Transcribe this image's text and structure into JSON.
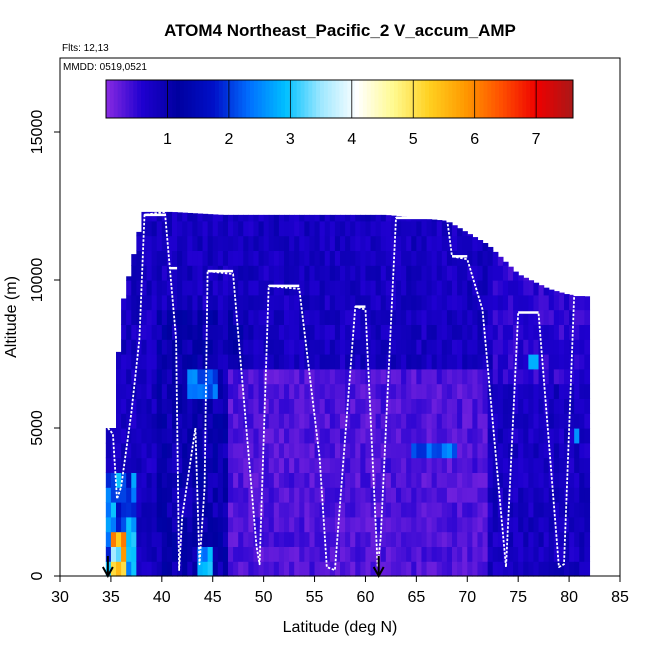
{
  "chart_data": {
    "type": "heatmap",
    "title": "ATOM4 Northeast_Pacific_2 V_accum_AMP",
    "flights_label": "Flts: 12,13",
    "dates_label": "MMDD: 0519,0521",
    "xlabel": "Latitude (deg N)",
    "ylabel": "Altitude (m)",
    "xlim": [
      30,
      85
    ],
    "ylim": [
      0,
      17500
    ],
    "x_ticks": [
      "30",
      "35",
      "40",
      "45",
      "50",
      "55",
      "60",
      "65",
      "70",
      "75",
      "80",
      "85"
    ],
    "y_ticks": [
      "0",
      "5000",
      "10000",
      "15000"
    ],
    "grid": false,
    "colorbar": {
      "placement": "top inside plot",
      "range": [
        0,
        7.6
      ],
      "ticks": [
        "1",
        "2",
        "3",
        "4",
        "5",
        "6",
        "7"
      ],
      "colors": [
        "#8a2be2",
        "#1f00d0",
        "#0000a0",
        "#0010c8",
        "#0070ff",
        "#00c0ff",
        "#a0e8ff",
        "#ffffff",
        "#fffa90",
        "#ffd020",
        "#ff9900",
        "#ff5000",
        "#ee0000",
        "#aa1818"
      ]
    },
    "flight_track_altitude_ceiling_m": [
      {
        "lat_start": 38.3,
        "lat_end": 40.3,
        "alt": 12200
      },
      {
        "lat_start": 40.8,
        "lat_end": 41.5,
        "alt": 10400
      },
      {
        "lat_start": 44.5,
        "lat_end": 47.0,
        "alt": 10300
      },
      {
        "lat_start": 50.5,
        "lat_end": 53.5,
        "alt": 9800
      },
      {
        "lat_start": 59.0,
        "lat_end": 60.0,
        "alt": 9100
      },
      {
        "lat_start": 63.0,
        "lat_end": 68.0,
        "alt": 12100
      },
      {
        "lat_start": 68.5,
        "lat_end": 70.0,
        "alt": 10800
      },
      {
        "lat_start": 75.0,
        "lat_end": 77.0,
        "alt": 8900
      },
      {
        "lat_start": 80.5,
        "lat_end": 82.0,
        "alt": 9500
      }
    ],
    "markers_lat": [
      34.7,
      61.3
    ]
  }
}
